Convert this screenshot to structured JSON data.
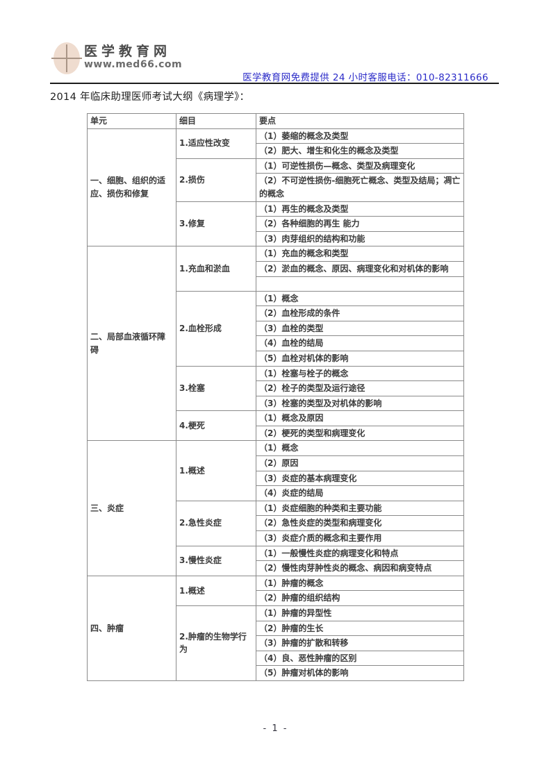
{
  "header": {
    "brand_title": "医学教育网",
    "brand_url": "www.med66.com",
    "contact_line": "医学教育网免费提供 24 小时客服电话：010-82311666",
    "contact_color": "#2b2bc8"
  },
  "doc_title": "2014 年临床助理医师考试大纲《病理学》：",
  "table": {
    "columns": [
      "单元",
      "细目",
      "要点"
    ],
    "units": [
      {
        "name": "一、细胞、组织的适应、损伤和修复",
        "items": [
          {
            "label": "1.适应性改变",
            "points": [
              "（1）萎缩的概念及类型",
              "（2）肥大、增生和化生的概念及类型"
            ]
          },
          {
            "label": "2.损伤",
            "points": [
              "（1）可逆性损伤—概念、类型及病理变化",
              "（2）不可逆性损伤-细胞死亡概念、类型及结局；凋亡的概念"
            ]
          },
          {
            "label": "3.修复",
            "points": [
              "（1）再生的概念及类型",
              "（2）各种细胞的再生 能力",
              "（3）肉芽组织的结构和功能"
            ]
          }
        ]
      },
      {
        "name": "二、局部血液循环障碍",
        "items": [
          {
            "label": "1.充血和淤血",
            "points": [
              "（1）充血的概念和类型",
              "（2）淤血的概念、原因、病理变化和对机体的影响",
              ""
            ]
          },
          {
            "label": "2.血栓形成",
            "points": [
              "（1）概念",
              "（2）血栓形成的条件",
              "（3）血栓的类型",
              "（4）血栓的结局",
              "（5）血栓对机体的影响"
            ]
          },
          {
            "label": "3.栓塞",
            "points": [
              "（1）栓塞与栓子的概念",
              "（2）栓子的类型及运行途径",
              "（3）栓塞的类型及对机体的影响"
            ]
          },
          {
            "label": "4.梗死",
            "points": [
              "（1）概念及原因",
              "（2）梗死的类型和病理变化"
            ]
          }
        ]
      },
      {
        "name": "三、炎症",
        "items": [
          {
            "label": "1.概述",
            "points": [
              "（1）概念",
              "（2）原因",
              "（3）炎症的基本病理变化",
              "（4）炎症的结局"
            ]
          },
          {
            "label": "2.急性炎症",
            "points": [
              "（1）炎症细胞的种类和主要功能",
              "（2）急性炎症的类型和病理变化",
              "（3）炎症介质的概念和主要作用"
            ]
          },
          {
            "label": "3.慢性炎症",
            "points": [
              "（1）一般慢性炎症的病理变化和特点",
              "（2）慢性肉芽肿性炎的概念、病因和病变特点"
            ]
          }
        ]
      },
      {
        "name": "四、肿瘤",
        "items": [
          {
            "label": "1.概述",
            "points": [
              "（1）肿瘤的概念",
              "（2）肿瘤的组织结构"
            ]
          },
          {
            "label": "2.肿瘤的生物学行为",
            "points": [
              "（1）肿瘤的异型性",
              "（2）肿瘤的生长",
              "（3）肿瘤的扩散和转移",
              "（4）良、恶性肿瘤的区别",
              "（5）肿瘤对机体的影响"
            ]
          }
        ]
      }
    ]
  },
  "footer": {
    "page_number": "- 1 -"
  }
}
